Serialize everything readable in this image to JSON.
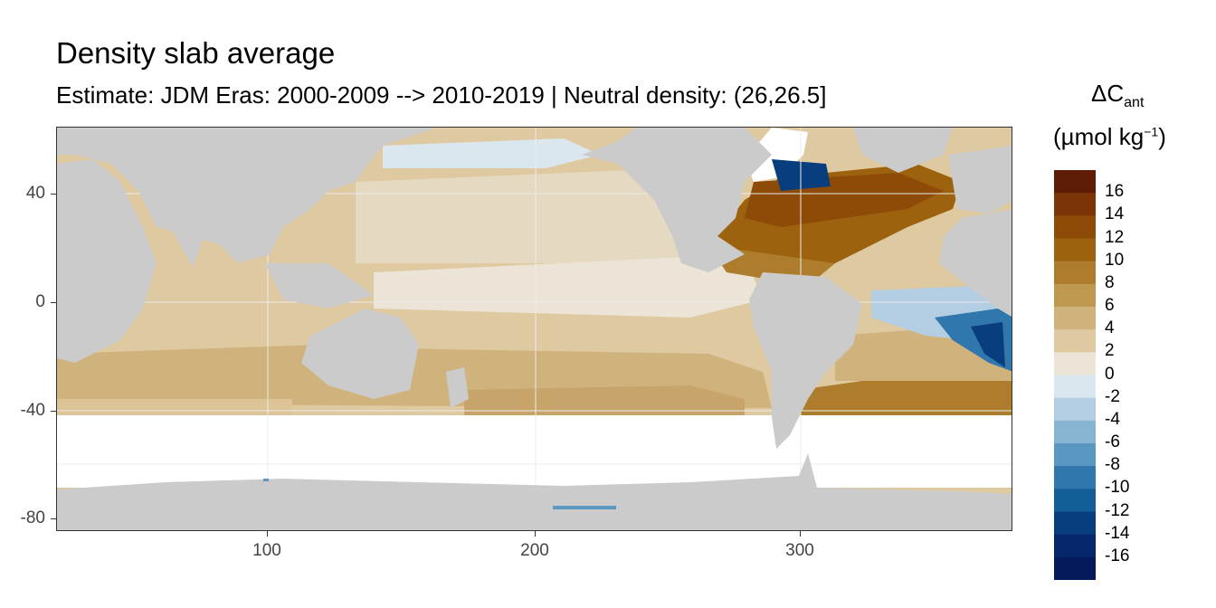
{
  "title": "Density slab average",
  "subtitle": "Estimate: JDM Eras: 2000-2009 --> 2010-2019 | Neutral density: (26,26.5]",
  "legend": {
    "title_main": "ΔC",
    "title_sub": "ant",
    "unit_prefix": "(µmol kg",
    "unit_sup": "−1",
    "unit_suffix": ")",
    "labels": [
      "16",
      "14",
      "12",
      "10",
      "8",
      "6",
      "4",
      "2",
      "0",
      "-2",
      "-4",
      "-6",
      "-8",
      "-10",
      "-12",
      "-14",
      "-16"
    ],
    "colors": [
      "#5e1b06",
      "#7a3406",
      "#8e4a07",
      "#9c620e",
      "#ad7c2c",
      "#bf9850",
      "#d0b37c",
      "#dfc9a0",
      "#ece4d6",
      "#dbe7ee",
      "#b3cee3",
      "#86b4d1",
      "#5a97c1",
      "#2f77ad",
      "#145e98",
      "#083e7e",
      "#06276b",
      "#041a5b"
    ]
  },
  "axes": {
    "x_ticks": [
      "100",
      "200",
      "300"
    ],
    "y_ticks": [
      "40",
      "0",
      "-40",
      "-80"
    ],
    "x_range": [
      20,
      381
    ],
    "y_range": [
      -85,
      65
    ]
  },
  "map_colors": {
    "land": "#cbcbcb",
    "no_data": "#ffffff",
    "grid": "#ebebeb"
  }
}
